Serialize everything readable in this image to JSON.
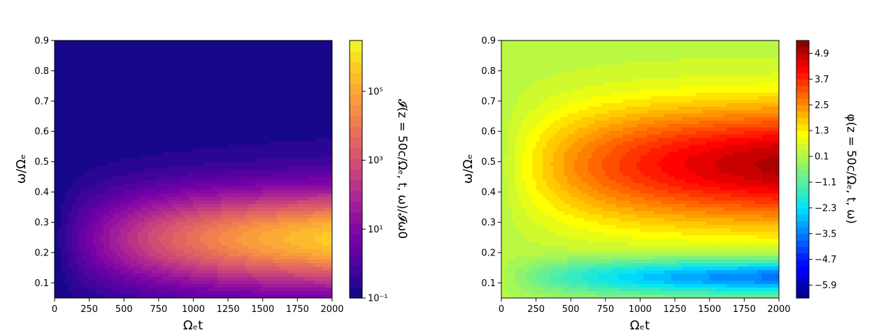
{
  "chart_data": [
    {
      "type": "heatmap",
      "style": "filled-contour",
      "xlabel": "Ωₑt",
      "ylabel": "ω/Ωₑ",
      "xlim": [
        0,
        2000
      ],
      "ylim": [
        0.05,
        0.9
      ],
      "xticks": [
        "0",
        "250",
        "500",
        "750",
        "1000",
        "1250",
        "1500",
        "1750",
        "2000"
      ],
      "yticks": [
        "0.1",
        "0.2",
        "0.3",
        "0.4",
        "0.5",
        "0.6",
        "0.7",
        "0.8",
        "0.9"
      ],
      "colormap": "plasma",
      "colorbar": {
        "scale": "log",
        "range": [
          0.1,
          3000000
        ],
        "ticks": [
          "10⁻¹",
          "10¹",
          "10³",
          "10⁵"
        ],
        "label": "𝓘(z = 50c/Ωₑ, t, ω)/𝓘ω0"
      },
      "peak": {
        "x": 1800,
        "y": 0.24,
        "value": 300000
      }
    },
    {
      "type": "heatmap",
      "style": "filled-contour",
      "xlabel": "Ωₑt",
      "ylabel": "ω/Ωₑ",
      "xlim": [
        0,
        2000
      ],
      "ylim": [
        0.05,
        0.9
      ],
      "xticks": [
        "0",
        "250",
        "500",
        "750",
        "1000",
        "1250",
        "1500",
        "1750",
        "2000"
      ],
      "yticks": [
        "0.1",
        "0.2",
        "0.3",
        "0.4",
        "0.5",
        "0.6",
        "0.7",
        "0.8",
        "0.9"
      ],
      "colormap": "jet",
      "colorbar": {
        "scale": "linear",
        "range": [
          -6.5,
          5.5
        ],
        "ticks": [
          "−5.9",
          "−4.7",
          "−3.5",
          "−2.3",
          "−1.1",
          "0.1",
          "1.3",
          "2.5",
          "3.7",
          "4.9"
        ],
        "label": "φ(z = 50c/Ωₑ, t, ω)"
      },
      "max": {
        "x": 1950,
        "y": 0.49,
        "value": 5.0
      },
      "min": {
        "x": 1800,
        "y": 0.12,
        "value": -3.9
      }
    }
  ]
}
